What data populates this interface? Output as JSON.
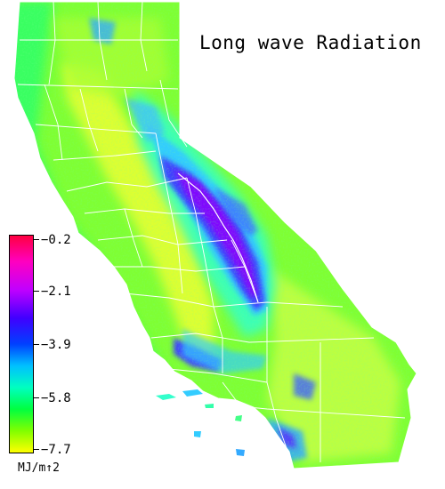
{
  "title": "Long wave Radiation",
  "legend": {
    "labels": [
      "−0.2",
      "−2.1",
      "−3.9",
      "−5.8",
      "−7.7"
    ],
    "unit": "MJ/m↑2",
    "value_max": -0.2,
    "value_min": -7.7,
    "colors": [
      "#ff0040",
      "#ff00ff",
      "#7f00ff",
      "#0000ff",
      "#00bfff",
      "#00ffbf",
      "#00ff40",
      "#7fff00",
      "#ffff00"
    ]
  },
  "palette": {
    "background": "#ffffff",
    "land_base": "#7fff33",
    "valley": "#ccff33",
    "coast": "#33ff66",
    "mountain_mid": "#33ccff",
    "mountain_high": "#5533ff",
    "peak": "#cc00ff",
    "boundary": "#ffffff"
  }
}
